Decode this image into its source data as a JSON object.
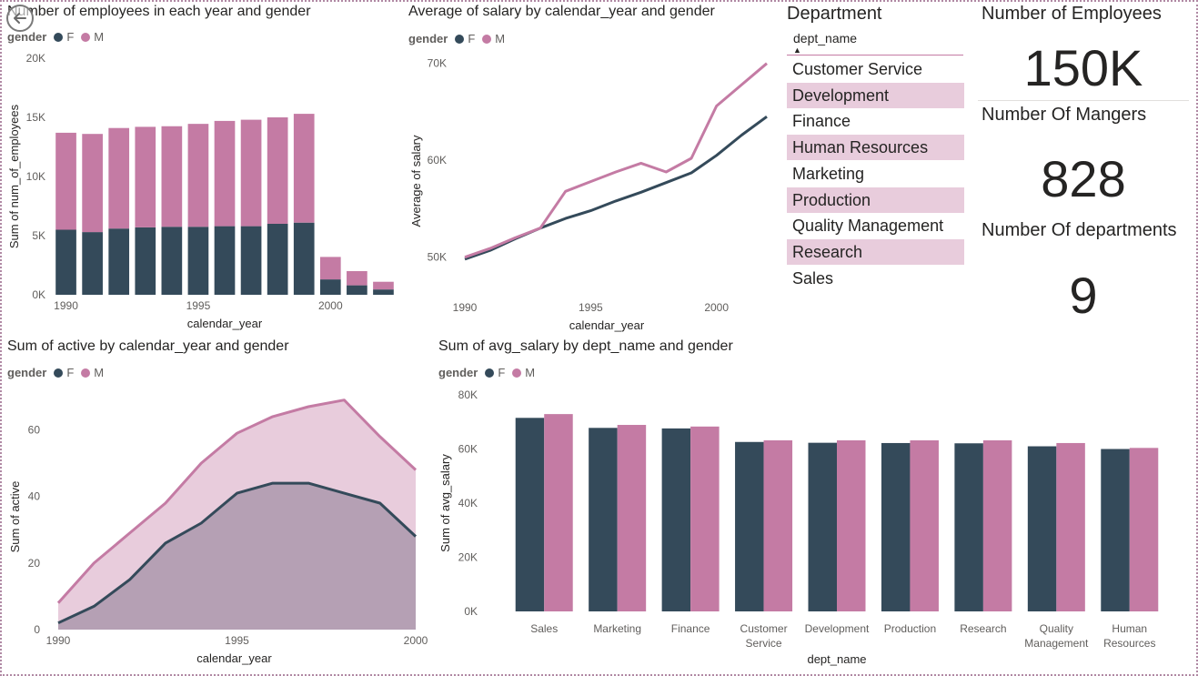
{
  "colors": {
    "female": "#344a5a",
    "male": "#c47ba4",
    "male_area": "#e8ccdc",
    "female_area": "#b5a0b4"
  },
  "legend": {
    "title": "gender",
    "female": "F",
    "male": "M"
  },
  "slicer": {
    "title": "Department",
    "header": "dept_name",
    "items": [
      "Customer Service",
      "Development",
      "Finance",
      "Human Resources",
      "Marketing",
      "Production",
      "Quality Management",
      "Research",
      "Sales"
    ]
  },
  "cards": [
    {
      "label": "Number of Employees",
      "value": "150K"
    },
    {
      "label": "Number Of Mangers",
      "value": "828"
    },
    {
      "label": "Number Of departments",
      "value": "9"
    }
  ],
  "chart_data": [
    {
      "id": "employees",
      "type": "bar",
      "stacked": true,
      "title": "Number of employees in each year and gender",
      "xlabel": "calendar_year",
      "ylabel": "Sum of num_of_employees",
      "categories": [
        1990,
        1991,
        1992,
        1993,
        1994,
        1995,
        1996,
        1997,
        1998,
        1999,
        2000,
        2001,
        2002
      ],
      "series": [
        {
          "name": "F",
          "values": [
            5500,
            5300,
            5600,
            5700,
            5750,
            5750,
            5800,
            5800,
            6000,
            6100,
            1300,
            800,
            450
          ]
        },
        {
          "name": "M",
          "values": [
            8200,
            8300,
            8500,
            8500,
            8500,
            8700,
            8900,
            9000,
            9000,
            9200,
            1900,
            1200,
            650
          ]
        }
      ],
      "ylim": [
        0,
        20000
      ],
      "yticks": [
        "0K",
        "5K",
        "10K",
        "15K",
        "20K"
      ],
      "xticks": [
        "1990",
        "1995",
        "2000"
      ],
      "legend_position": "top-left"
    },
    {
      "id": "salary",
      "type": "line",
      "title": "Average of salary by calendar_year and gender",
      "xlabel": "calendar_year",
      "ylabel": "Average of salary",
      "x": [
        1990,
        1991,
        1992,
        1993,
        1994,
        1995,
        1996,
        1997,
        1998,
        1999,
        2000,
        2001,
        2002
      ],
      "series": [
        {
          "name": "F",
          "values": [
            49800,
            50700,
            51900,
            53000,
            54000,
            54800,
            55800,
            56700,
            57700,
            58700,
            60500,
            62600,
            64500
          ]
        },
        {
          "name": "M",
          "values": [
            50000,
            50900,
            52000,
            53000,
            56800,
            57800,
            58800,
            59700,
            58800,
            60200,
            65600,
            67800,
            70000
          ]
        }
      ],
      "ylim": [
        48000,
        71000
      ],
      "yticks": [
        "50K",
        "60K",
        "70K"
      ],
      "xticks": [
        "1990",
        "1995",
        "2000"
      ],
      "legend_position": "top-left"
    },
    {
      "id": "active",
      "type": "area",
      "title": "Sum of active by calendar_year and gender",
      "xlabel": "calendar_year",
      "ylabel": "Sum of active",
      "x": [
        1990,
        1991,
        1992,
        1993,
        1994,
        1995,
        1996,
        1997,
        1998,
        1999,
        2000
      ],
      "series": [
        {
          "name": "F",
          "values": [
            2,
            7,
            15,
            26,
            32,
            41,
            44,
            44,
            41,
            38,
            28
          ]
        },
        {
          "name": "M",
          "values": [
            8,
            20,
            29,
            38,
            50,
            59,
            64,
            67,
            69,
            58,
            48
          ]
        }
      ],
      "ylim": [
        0,
        70
      ],
      "yticks": [
        "0",
        "20",
        "40",
        "60"
      ],
      "xticks": [
        "1990",
        "1995",
        "2000"
      ],
      "legend_position": "top-left"
    },
    {
      "id": "avgsal",
      "type": "bar",
      "title": "Sum of avg_salary by dept_name and gender",
      "xlabel": "dept_name",
      "ylabel": "Sum of avg_salary",
      "categories": [
        "Sales",
        "Marketing",
        "Finance",
        "Customer Service",
        "Development",
        "Production",
        "Research",
        "Quality Management",
        "Human Resources"
      ],
      "series": [
        {
          "name": "F",
          "values": [
            71500,
            67800,
            67600,
            62600,
            62300,
            62200,
            62100,
            61000,
            60000
          ]
        },
        {
          "name": "M",
          "values": [
            72900,
            68900,
            68300,
            63200,
            63200,
            63200,
            63200,
            62200,
            60400
          ]
        }
      ],
      "ylim": [
        0,
        80000
      ],
      "yticks": [
        "0K",
        "20K",
        "40K",
        "60K",
        "80K"
      ],
      "legend_position": "top-left"
    }
  ]
}
